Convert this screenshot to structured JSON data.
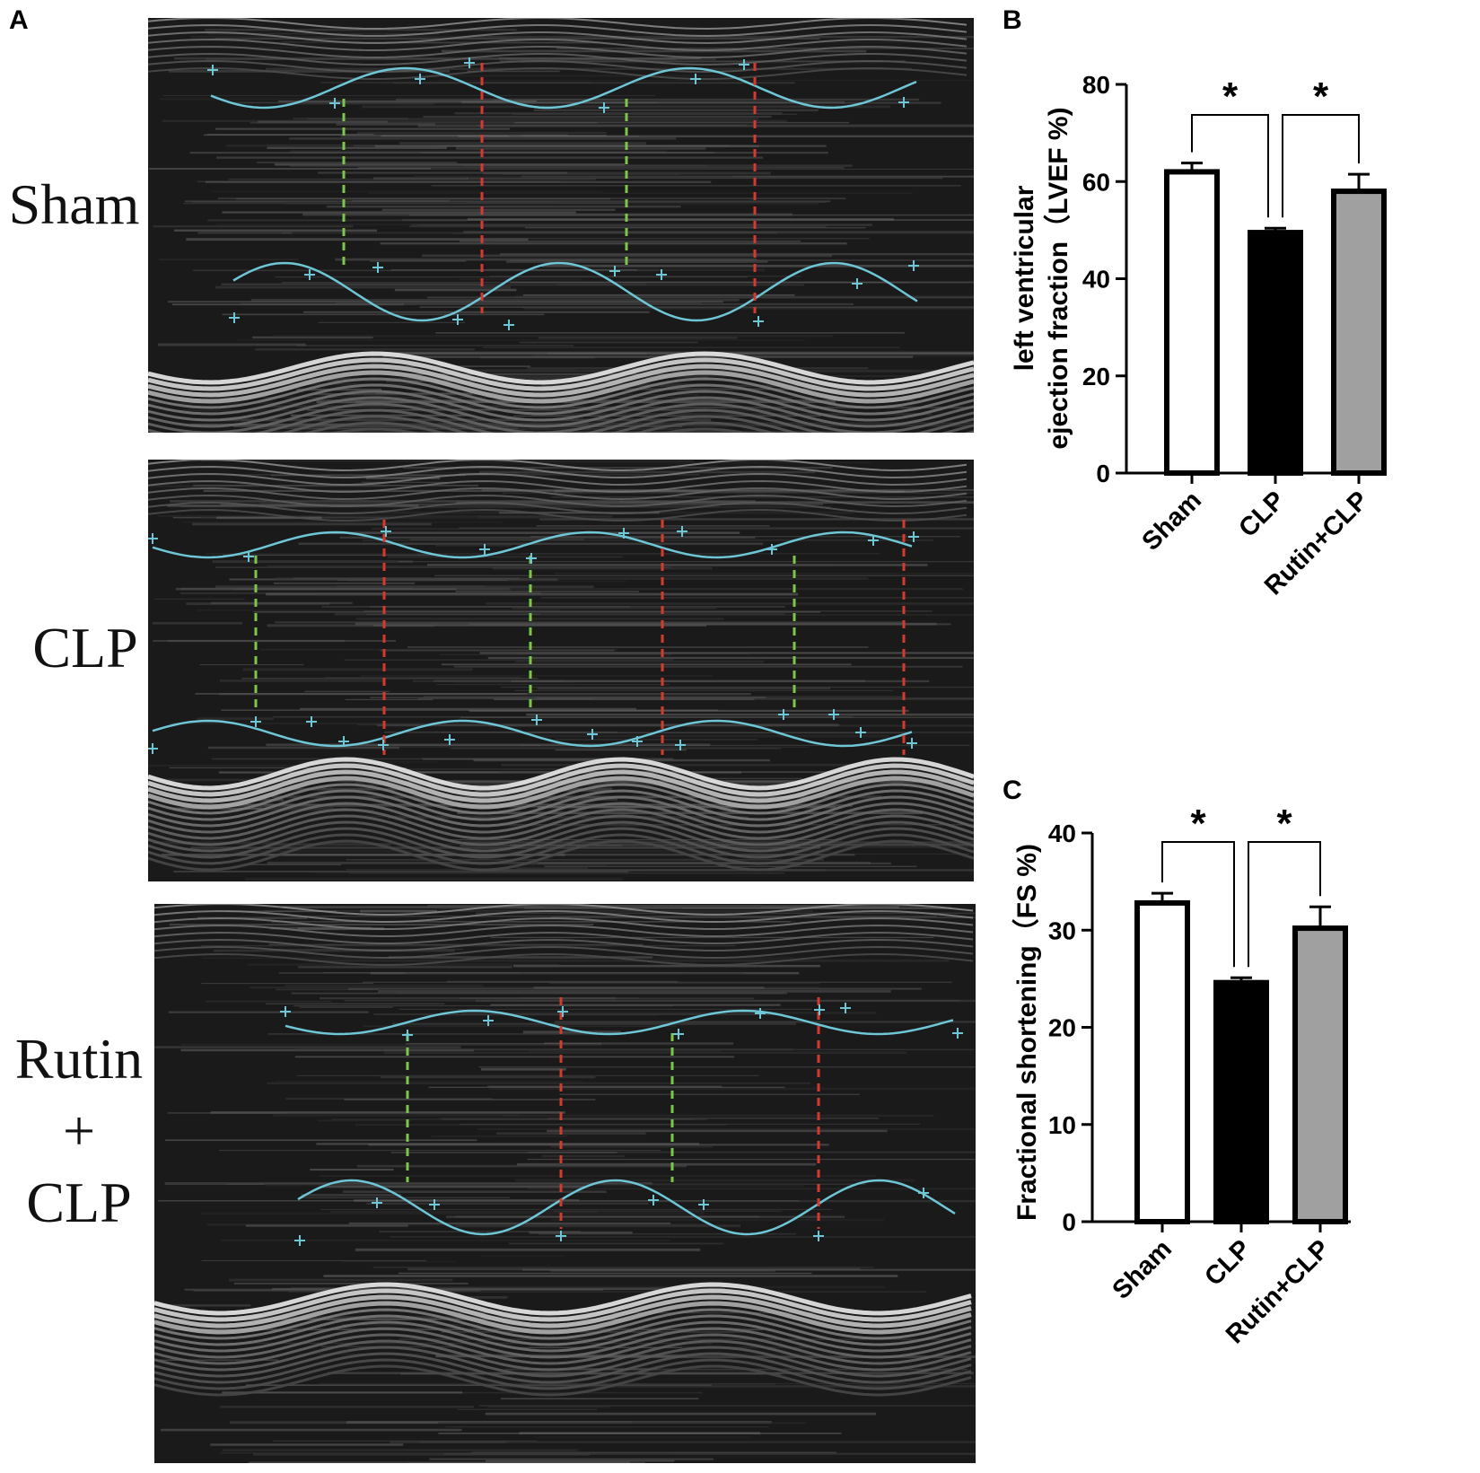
{
  "panels": {
    "a_letter": "A",
    "b_letter": "B",
    "c_letter": "C"
  },
  "echo_groups": [
    {
      "label": "Sham"
    },
    {
      "label": "CLP"
    },
    {
      "label_lines": [
        "Rutin",
        "+",
        "CLP"
      ]
    }
  ],
  "colors": {
    "trace": "#6ec6d6",
    "systole_marker": "#7cc64a",
    "diastole_marker": "#d8392f",
    "bar_sham": "#ffffff",
    "bar_clp": "#000000",
    "bar_rutin_clp": "#a0a0a0"
  },
  "chart_data": [
    {
      "type": "bar",
      "panel": "B",
      "categories": [
        "Sham",
        "CLP",
        "Rutin+CLP"
      ],
      "values": [
        62,
        49.5,
        58
      ],
      "errors": [
        1.8,
        0.9,
        3.5
      ],
      "ylabel_lines": [
        "left ventricular",
        "ejection fraction（LVEF %)"
      ],
      "ylim": [
        0,
        80
      ],
      "yticks": [
        "0",
        "20",
        "40",
        "60",
        "80"
      ],
      "significance": [
        {
          "from": 0,
          "to": 1,
          "label": "*"
        },
        {
          "from": 1,
          "to": 2,
          "label": "*"
        }
      ]
    },
    {
      "type": "bar",
      "panel": "C",
      "categories": [
        "Sham",
        "CLP",
        "Rutin+CLP"
      ],
      "values": [
        32.8,
        24.6,
        30.2
      ],
      "errors": [
        1.0,
        0.5,
        2.2
      ],
      "ylabel_lines": [
        "Fractional shortening（FS %)"
      ],
      "ylim": [
        0,
        40
      ],
      "yticks": [
        "0",
        "10",
        "20",
        "30",
        "40"
      ],
      "significance": [
        {
          "from": 0,
          "to": 1,
          "label": "*"
        },
        {
          "from": 1,
          "to": 2,
          "label": "*"
        }
      ]
    }
  ]
}
